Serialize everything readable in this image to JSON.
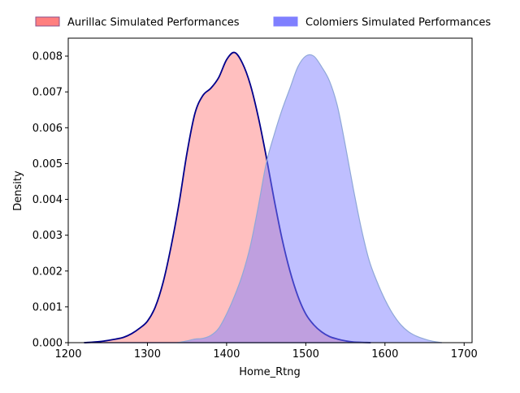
{
  "chart_data": {
    "type": "area",
    "title": "",
    "xlabel": "Home_Rtng",
    "ylabel": "Density",
    "xlim": [
      1200,
      1710
    ],
    "ylim": [
      0,
      0.0085
    ],
    "x_ticks": [
      1200,
      1300,
      1400,
      1500,
      1600,
      1700
    ],
    "y_ticks": [
      0.0,
      0.001,
      0.002,
      0.003,
      0.004,
      0.005,
      0.006,
      0.007,
      0.008
    ],
    "y_tick_decimals": 3,
    "grid": false,
    "legend_position": "top",
    "series": [
      {
        "name": "Aurillac Simulated Performances",
        "fill_color": "#ff7f7f",
        "fill_opacity": 0.5,
        "line_color": "#00008b",
        "legend_fill": "#ff7f7f",
        "legend_edge": "#8b4f8b",
        "points": [
          [
            1220,
            0.0
          ],
          [
            1240,
            3e-05
          ],
          [
            1260,
            0.0001
          ],
          [
            1270,
            0.00015
          ],
          [
            1280,
            0.00025
          ],
          [
            1290,
            0.0004
          ],
          [
            1300,
            0.0006
          ],
          [
            1310,
            0.001
          ],
          [
            1320,
            0.0017
          ],
          [
            1330,
            0.0027
          ],
          [
            1340,
            0.0039
          ],
          [
            1350,
            0.0053
          ],
          [
            1360,
            0.0064
          ],
          [
            1370,
            0.0069
          ],
          [
            1380,
            0.0071
          ],
          [
            1390,
            0.0074
          ],
          [
            1400,
            0.0079
          ],
          [
            1410,
            0.0081
          ],
          [
            1420,
            0.0078
          ],
          [
            1430,
            0.0072
          ],
          [
            1440,
            0.0063
          ],
          [
            1450,
            0.0052
          ],
          [
            1460,
            0.004
          ],
          [
            1470,
            0.0029
          ],
          [
            1480,
            0.002
          ],
          [
            1490,
            0.0013
          ],
          [
            1500,
            0.0008
          ],
          [
            1510,
            0.0005
          ],
          [
            1520,
            0.0003
          ],
          [
            1530,
            0.00017
          ],
          [
            1540,
            0.0001
          ],
          [
            1550,
            5e-05
          ],
          [
            1560,
            2e-05
          ],
          [
            1582,
            0.0
          ]
        ]
      },
      {
        "name": "Colomiers Simulated Performances",
        "fill_color": "#7f7fff",
        "fill_opacity": 0.5,
        "line_color": "#8fa8d8",
        "legend_fill": "#7f7fff",
        "legend_edge": "#7f7fff",
        "points": [
          [
            1338,
            0.0
          ],
          [
            1350,
            5e-05
          ],
          [
            1360,
            0.0001
          ],
          [
            1370,
            0.00012
          ],
          [
            1380,
            0.0002
          ],
          [
            1390,
            0.0004
          ],
          [
            1400,
            0.0008
          ],
          [
            1410,
            0.0013
          ],
          [
            1420,
            0.0019
          ],
          [
            1430,
            0.0027
          ],
          [
            1440,
            0.0038
          ],
          [
            1450,
            0.005
          ],
          [
            1460,
            0.0058
          ],
          [
            1470,
            0.0065
          ],
          [
            1480,
            0.0071
          ],
          [
            1490,
            0.0077
          ],
          [
            1500,
            0.008
          ],
          [
            1510,
            0.008
          ],
          [
            1520,
            0.0077
          ],
          [
            1530,
            0.0073
          ],
          [
            1540,
            0.0066
          ],
          [
            1550,
            0.0055
          ],
          [
            1560,
            0.0043
          ],
          [
            1570,
            0.0032
          ],
          [
            1580,
            0.0023
          ],
          [
            1590,
            0.0017
          ],
          [
            1600,
            0.0012
          ],
          [
            1610,
            0.0008
          ],
          [
            1620,
            0.0005
          ],
          [
            1630,
            0.0003
          ],
          [
            1640,
            0.00018
          ],
          [
            1650,
            0.0001
          ],
          [
            1660,
            4e-05
          ],
          [
            1672,
            0.0
          ]
        ]
      }
    ]
  }
}
